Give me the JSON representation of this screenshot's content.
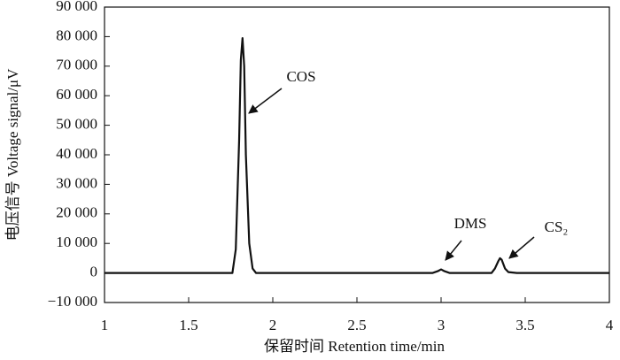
{
  "chart_data": {
    "type": "line",
    "xlabel": "保留时间 Retention time/min",
    "ylabel": "电压信号 Voltage signal/μV",
    "x": [
      1,
      1.7,
      1.76,
      1.78,
      1.8,
      1.81,
      1.82,
      1.83,
      1.84,
      1.86,
      1.88,
      1.9,
      2.0,
      2.5,
      2.95,
      2.98,
      3.0,
      3.02,
      3.05,
      3.3,
      3.32,
      3.34,
      3.35,
      3.36,
      3.38,
      3.4,
      3.45,
      4
    ],
    "values": [
      0,
      0,
      0,
      8000,
      45000,
      72000,
      79500,
      70000,
      40000,
      10000,
      1500,
      0,
      0,
      0,
      0,
      600,
      1200,
      600,
      0,
      0,
      1500,
      4000,
      5000,
      4500,
      1500,
      300,
      0,
      0
    ],
    "color": "#111111",
    "xlim": [
      1,
      4
    ],
    "xticks": [
      1,
      1.5,
      2,
      2.5,
      3,
      3.5,
      4
    ],
    "ylim": [
      -10000,
      90000
    ],
    "yticks": [
      {
        "value": -10000,
        "label": "−10 000"
      },
      {
        "value": 0,
        "label": "0"
      },
      {
        "value": 10000,
        "label": "10 000"
      },
      {
        "value": 20000,
        "label": "20 000"
      },
      {
        "value": 30000,
        "label": "30 000"
      },
      {
        "value": 40000,
        "label": "40 000"
      },
      {
        "value": 50000,
        "label": "50 000"
      },
      {
        "value": 60000,
        "label": "60 000"
      },
      {
        "value": 70000,
        "label": "70 000"
      },
      {
        "value": 80000,
        "label": "80 000"
      },
      {
        "value": 90000,
        "label": "90 000"
      }
    ],
    "grid": false,
    "annotations": [
      {
        "text": "COS"
      },
      {
        "text": "DMS"
      },
      {
        "text": "CS₂"
      }
    ]
  }
}
